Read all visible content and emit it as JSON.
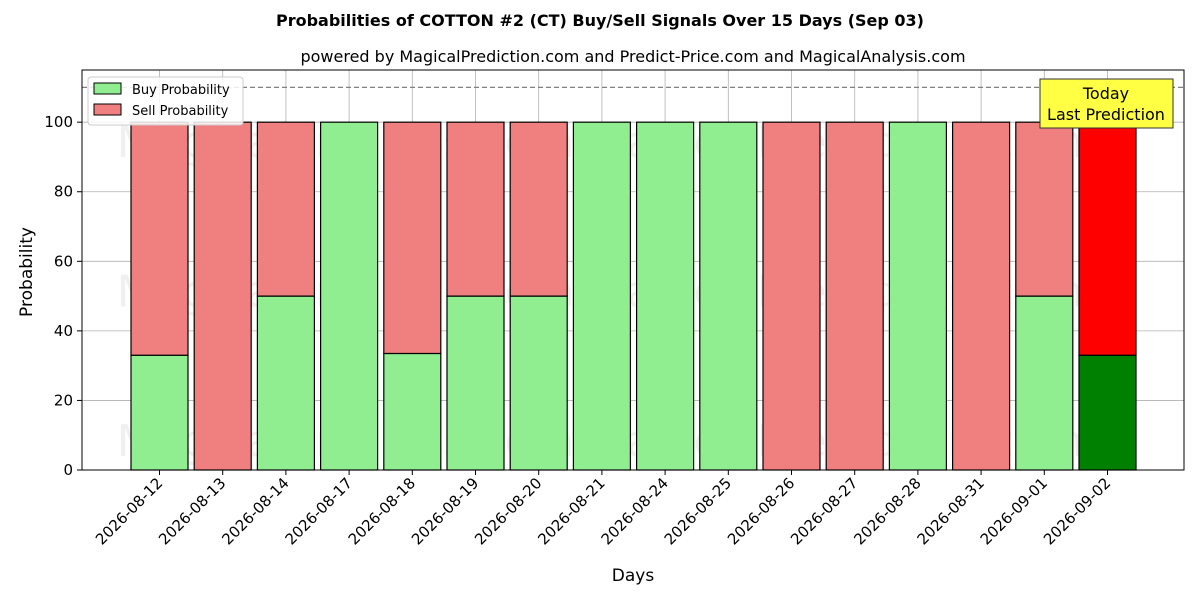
{
  "chart_data": {
    "type": "bar",
    "stacked": true,
    "title": "Probabilities of COTTON #2 (CT) Buy/Sell Signals Over 15 Days (Sep 03)",
    "subtitle": "powered by MagicalPrediction.com and Predict-Price.com and MagicalAnalysis.com",
    "xlabel": "Days",
    "ylabel": "Probability",
    "ylim": [
      0,
      115
    ],
    "yticks": [
      0,
      20,
      40,
      60,
      80,
      100
    ],
    "grid": true,
    "legend_position": "top-left",
    "reference_line": 110,
    "categories": [
      "2026-08-12",
      "2026-08-13",
      "2026-08-14",
      "2026-08-17",
      "2026-08-18",
      "2026-08-19",
      "2026-08-20",
      "2026-08-21",
      "2026-08-24",
      "2026-08-25",
      "2026-08-26",
      "2026-08-27",
      "2026-08-28",
      "2026-08-31",
      "2026-09-01",
      "2026-09-02"
    ],
    "series": [
      {
        "name": "Buy Probability",
        "color": "#90ee90",
        "highlight_color": "#008000",
        "values": [
          33,
          0,
          50,
          100,
          33.5,
          50,
          50,
          100,
          100,
          100,
          0,
          0,
          100,
          0,
          50,
          33
        ]
      },
      {
        "name": "Sell Probability",
        "color": "#f08080",
        "highlight_color": "#ff0000",
        "values": [
          67,
          100,
          50,
          0,
          66.5,
          50,
          50,
          0,
          0,
          0,
          100,
          100,
          0,
          100,
          50,
          67
        ]
      }
    ],
    "highlight_index": 15,
    "annotation": {
      "line1": "Today",
      "line2": "Last Prediction",
      "bg_color": "#ffff44"
    },
    "watermark": "MagicalAnalysis.com     MagicalPrediction.com"
  }
}
